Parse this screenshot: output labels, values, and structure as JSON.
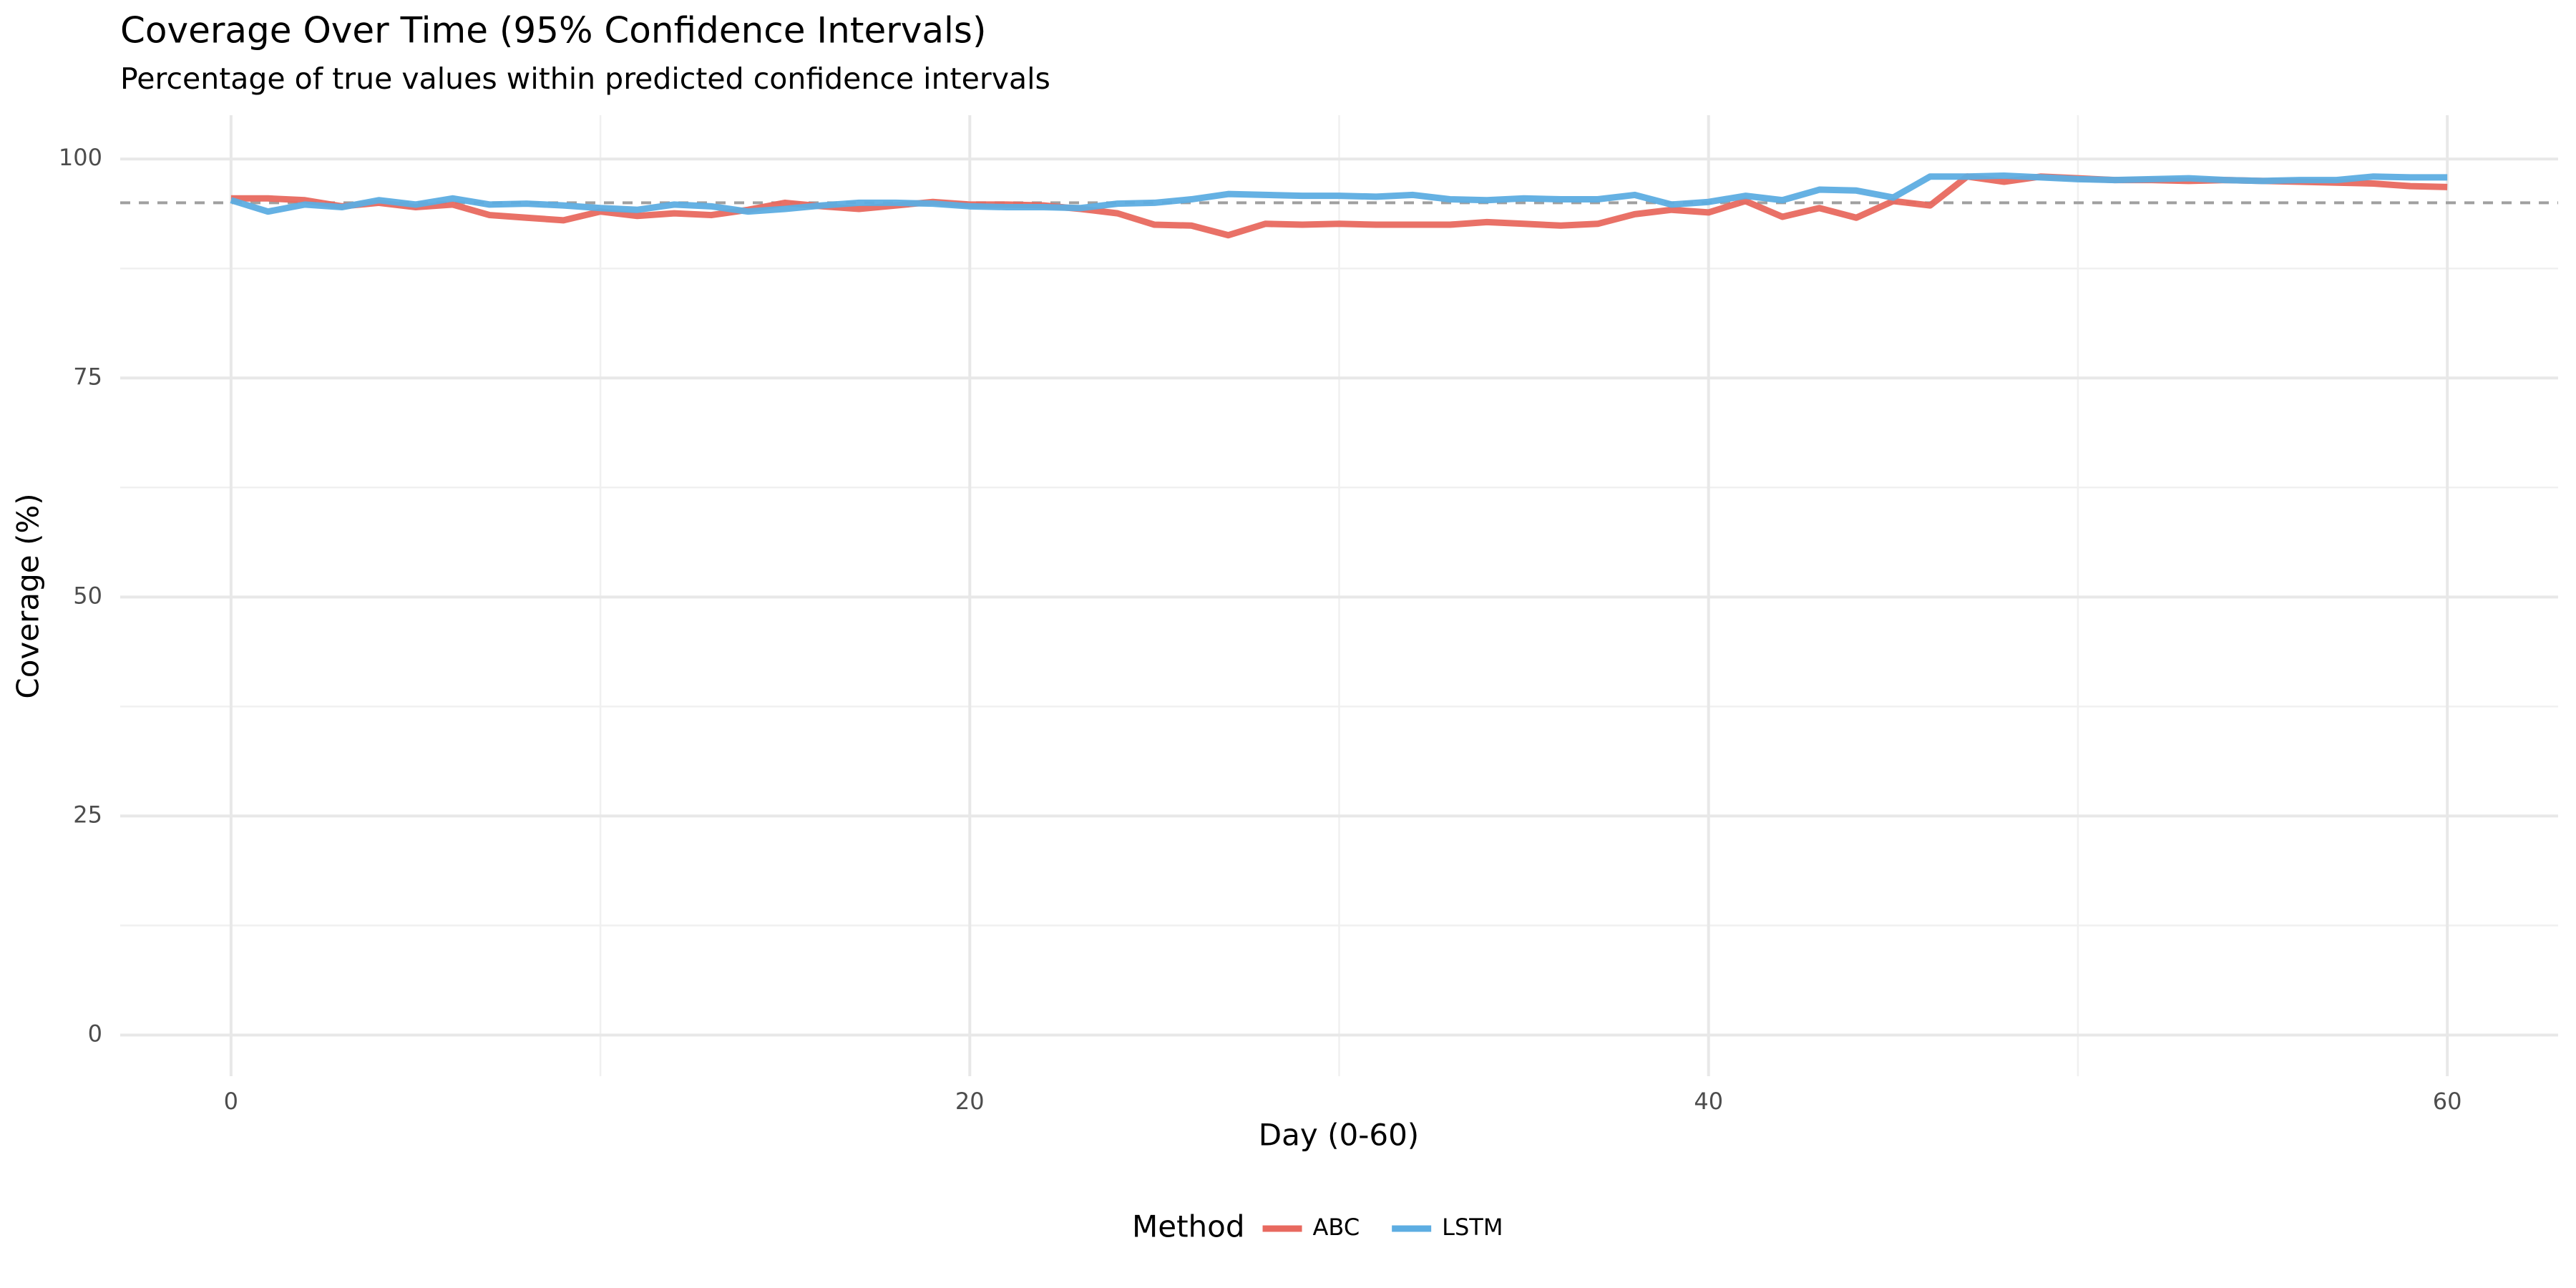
{
  "chart_data": {
    "type": "line",
    "title": "Coverage Over Time (95% Confidence Intervals)",
    "subtitle": "Percentage of true values within predicted confidence intervals",
    "x_label": "Day (0-60)",
    "y_label": "Coverage (%)",
    "legend_title": "Method",
    "legend_position": "bottom",
    "grid": true,
    "x": [
      0,
      1,
      2,
      3,
      4,
      5,
      6,
      7,
      8,
      9,
      10,
      11,
      12,
      13,
      14,
      15,
      16,
      17,
      18,
      19,
      20,
      21,
      22,
      23,
      24,
      25,
      26,
      27,
      28,
      29,
      30,
      31,
      32,
      33,
      34,
      35,
      36,
      37,
      38,
      39,
      40,
      41,
      42,
      43,
      44,
      45,
      46,
      47,
      48,
      49,
      50,
      51,
      52,
      53,
      54,
      55,
      56,
      57,
      58,
      59,
      60
    ],
    "series": [
      {
        "name": "ABC",
        "color": "#e8695f",
        "values": [
          95.5,
          95.5,
          95.3,
          94.6,
          95.0,
          94.5,
          94.8,
          93.6,
          93.3,
          93.0,
          94.0,
          93.5,
          93.8,
          93.6,
          94.2,
          95.0,
          94.6,
          94.3,
          94.7,
          95.1,
          94.8,
          94.8,
          94.7,
          94.3,
          93.8,
          92.5,
          92.4,
          91.3,
          92.6,
          92.5,
          92.6,
          92.5,
          92.5,
          92.5,
          92.8,
          92.6,
          92.4,
          92.6,
          93.7,
          94.2,
          93.9,
          95.2,
          93.4,
          94.4,
          93.3,
          95.2,
          94.7,
          98.0,
          97.4,
          98.0,
          97.8,
          97.6,
          97.6,
          97.5,
          97.6,
          97.5,
          97.4,
          97.3,
          97.2,
          96.9,
          96.8
        ]
      },
      {
        "name": "LSTM",
        "color": "#5dade2",
        "values": [
          95.3,
          94.0,
          94.8,
          94.5,
          95.3,
          94.8,
          95.5,
          94.8,
          94.9,
          94.7,
          94.4,
          94.2,
          94.8,
          94.6,
          94.0,
          94.3,
          94.7,
          95.0,
          95.0,
          94.9,
          94.6,
          94.5,
          94.5,
          94.4,
          94.9,
          95.0,
          95.4,
          96.0,
          95.9,
          95.8,
          95.8,
          95.7,
          95.9,
          95.4,
          95.3,
          95.5,
          95.4,
          95.4,
          95.9,
          94.8,
          95.1,
          95.8,
          95.3,
          96.5,
          96.4,
          95.6,
          98.0,
          98.0,
          98.1,
          97.9,
          97.7,
          97.6,
          97.7,
          97.8,
          97.6,
          97.5,
          97.6,
          97.6,
          98.0,
          97.9,
          97.9
        ]
      }
    ],
    "reference_line": 95,
    "reference_color": "#a0a0a0",
    "xlim": [
      -3,
      63
    ],
    "xticks": [
      0,
      20,
      40,
      60
    ],
    "xminor": [
      10,
      30,
      50
    ],
    "ylim": [
      -4.7,
      105
    ],
    "yticks": [
      0,
      25,
      50,
      75,
      100
    ],
    "yminor": [
      12.5,
      37.5,
      62.5,
      87.5
    ]
  }
}
